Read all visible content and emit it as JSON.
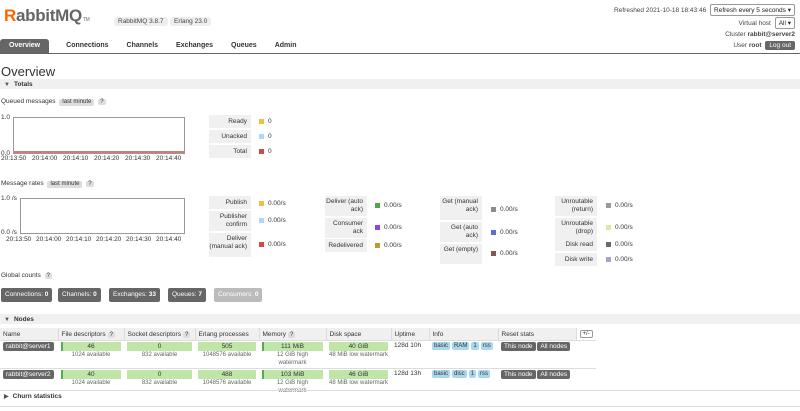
{
  "header": {
    "logo_r": "R",
    "logo_rest": "abbitMQ",
    "logo_tm": "TM",
    "version": "RabbitMQ 3.8.7",
    "erlang": "Erlang 23.0",
    "refreshed": "Refreshed 2021-10-18 18:43:46",
    "refresh_select": "Refresh every 5 seconds",
    "vhost_label": "Virtual host",
    "vhost_value": "All",
    "cluster_label": "Cluster",
    "cluster_value": "rabbit@server2",
    "user_label": "User",
    "user_value": "root",
    "logout": "Log out"
  },
  "tabs": [
    "Overview",
    "Connections",
    "Channels",
    "Exchanges",
    "Queues",
    "Admin"
  ],
  "page_title": "Overview",
  "totals": {
    "header": "Totals",
    "queued_label": "Queued messages",
    "queued_range": "last minute",
    "help": "?",
    "chart": {
      "y_top": "1.0",
      "y_bottom": "0.0",
      "x_ticks": [
        "20:13:50",
        "20:14:00",
        "20:14:10",
        "20:14:20",
        "20:14:30",
        "20:14:40"
      ]
    },
    "legend": [
      {
        "label": "Ready",
        "value": "0",
        "color": "#edc240"
      },
      {
        "label": "Unacked",
        "value": "0",
        "color": "#afd8f8"
      },
      {
        "label": "Total",
        "value": "0",
        "color": "#cb4b4b"
      }
    ]
  },
  "rates": {
    "label": "Message rates",
    "range": "last minute",
    "chart": {
      "y_top": "1.0 /s",
      "y_bottom": "0.0 /s",
      "x_ticks": [
        "20:13:50",
        "20:14:00",
        "20:14:10",
        "20:14:20",
        "20:14:30",
        "20:14:40"
      ]
    },
    "col1": [
      {
        "label": "Publish",
        "value": "0.00/s",
        "color": "#edc240"
      },
      {
        "label": "Publisher confirm",
        "value": "0.00/s",
        "color": "#afd8f8"
      },
      {
        "label": "Deliver (manual ack)",
        "value": "0.00/s",
        "color": "#cb4b4b"
      }
    ],
    "col2": [
      {
        "label": "Deliver (auto ack)",
        "value": "0.00/s",
        "color": "#4da74d"
      },
      {
        "label": "Consumer ack",
        "value": "0.00/s",
        "color": "#9440ed"
      },
      {
        "label": "Redelivered",
        "value": "0.00/s",
        "color": "#bd9b33"
      }
    ],
    "col3": [
      {
        "label": "Get (manual ack)",
        "value": "0.00/s",
        "color": "#8c8c8c"
      },
      {
        "label": "Get (auto ack)",
        "value": "0.00/s",
        "color": "#5b6fc8"
      },
      {
        "label": "Get (empty)",
        "value": "0.00/s",
        "color": "#7a5a54"
      }
    ],
    "col4": [
      {
        "label": "Unroutable (return)",
        "value": "0.00/s",
        "color": "#9a9a9a"
      },
      {
        "label": "Unroutable (drop)",
        "value": "0.00/s",
        "color": "#dfe6a0"
      },
      {
        "label": "Disk read",
        "value": "0.00/s",
        "color": "#6b6b6b"
      },
      {
        "label": "Disk write",
        "value": "0.00/s",
        "color": "#a9a0d6"
      }
    ]
  },
  "global_counts": {
    "label": "Global counts",
    "items": [
      {
        "label": "Connections:",
        "value": "0",
        "dim": false
      },
      {
        "label": "Channels:",
        "value": "0",
        "dim": false
      },
      {
        "label": "Exchanges:",
        "value": "33",
        "dim": false
      },
      {
        "label": "Queues:",
        "value": "7",
        "dim": false
      },
      {
        "label": "Consumers:",
        "value": "0",
        "dim": true
      }
    ]
  },
  "nodes": {
    "header": "Nodes",
    "columns": [
      "Name",
      "File descriptors",
      "Socket descriptors",
      "Erlang processes",
      "Memory",
      "Disk space",
      "Uptime",
      "Info",
      "Reset stats"
    ],
    "plusminus": "+/-",
    "rows": [
      {
        "name": "rabbit@server1",
        "fd": "46",
        "fd_sub": "1024 available",
        "sock": "0",
        "sock_sub": "832 available",
        "erl": "505",
        "erl_sub": "1048576 available",
        "mem": "111 MiB",
        "mem_sub": "12 GiB high watermark",
        "disk": "40 GiB",
        "disk_sub": "48 MiB low watermark",
        "uptime": "128d 10h",
        "info": [
          "basic",
          "RAM",
          "1",
          "rss"
        ],
        "btn1": "This node",
        "btn2": "All nodes"
      },
      {
        "name": "rabbit@server2",
        "fd": "40",
        "fd_sub": "1024 available",
        "sock": "0",
        "sock_sub": "832 available",
        "erl": "488",
        "erl_sub": "1048576 available",
        "mem": "103 MiB",
        "mem_sub": "12 GiB high watermark",
        "disk": "46 GiB",
        "disk_sub": "48 MiB low watermark",
        "uptime": "128d 13h",
        "info": [
          "basic",
          "disc",
          "1",
          "rss"
        ],
        "btn1": "This node",
        "btn2": "All nodes"
      }
    ]
  },
  "churn": {
    "header": "Churn statistics"
  }
}
